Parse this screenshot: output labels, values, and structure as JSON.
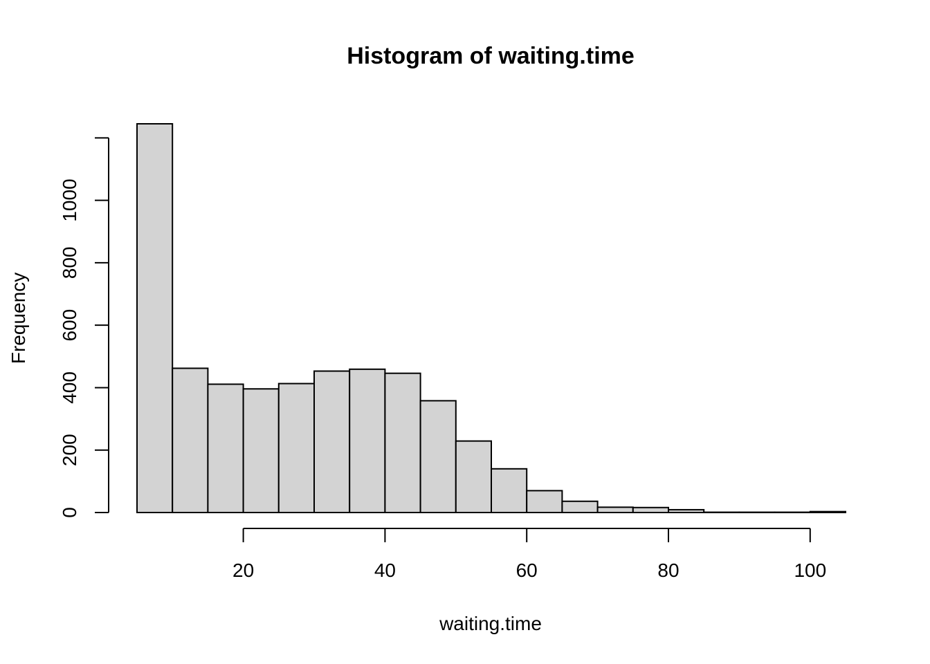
{
  "chart_data": {
    "type": "bar",
    "title": "Histogram of waiting.time",
    "xlabel": "waiting.time",
    "ylabel": "Frequency",
    "bin_width": 5,
    "bins": [
      {
        "x0": 5,
        "x1": 10,
        "count": 1245
      },
      {
        "x0": 10,
        "x1": 15,
        "count": 462
      },
      {
        "x0": 15,
        "x1": 20,
        "count": 411
      },
      {
        "x0": 20,
        "x1": 25,
        "count": 396
      },
      {
        "x0": 25,
        "x1": 30,
        "count": 413
      },
      {
        "x0": 30,
        "x1": 35,
        "count": 453
      },
      {
        "x0": 35,
        "x1": 40,
        "count": 459
      },
      {
        "x0": 40,
        "x1": 45,
        "count": 446
      },
      {
        "x0": 45,
        "x1": 50,
        "count": 358
      },
      {
        "x0": 50,
        "x1": 55,
        "count": 229
      },
      {
        "x0": 55,
        "x1": 60,
        "count": 140
      },
      {
        "x0": 60,
        "x1": 65,
        "count": 70
      },
      {
        "x0": 65,
        "x1": 70,
        "count": 36
      },
      {
        "x0": 70,
        "x1": 75,
        "count": 17
      },
      {
        "x0": 75,
        "x1": 80,
        "count": 16
      },
      {
        "x0": 80,
        "x1": 85,
        "count": 9
      },
      {
        "x0": 85,
        "x1": 90,
        "count": 1
      },
      {
        "x0": 90,
        "x1": 95,
        "count": 1
      },
      {
        "x0": 95,
        "x1": 100,
        "count": 1
      },
      {
        "x0": 100,
        "x1": 105,
        "count": 3
      }
    ],
    "x_ticks": [
      20,
      40,
      60,
      80,
      100
    ],
    "y_ticks": [
      0,
      200,
      400,
      600,
      800,
      1000
    ],
    "xlim": [
      5,
      105
    ],
    "ylim": [
      0,
      1245
    ],
    "x_axis_range": [
      20,
      100
    ],
    "y_axis_range": [
      0,
      1200
    ],
    "grid": false,
    "bar_fill": "#d3d3d3",
    "bar_stroke": "#000000"
  }
}
